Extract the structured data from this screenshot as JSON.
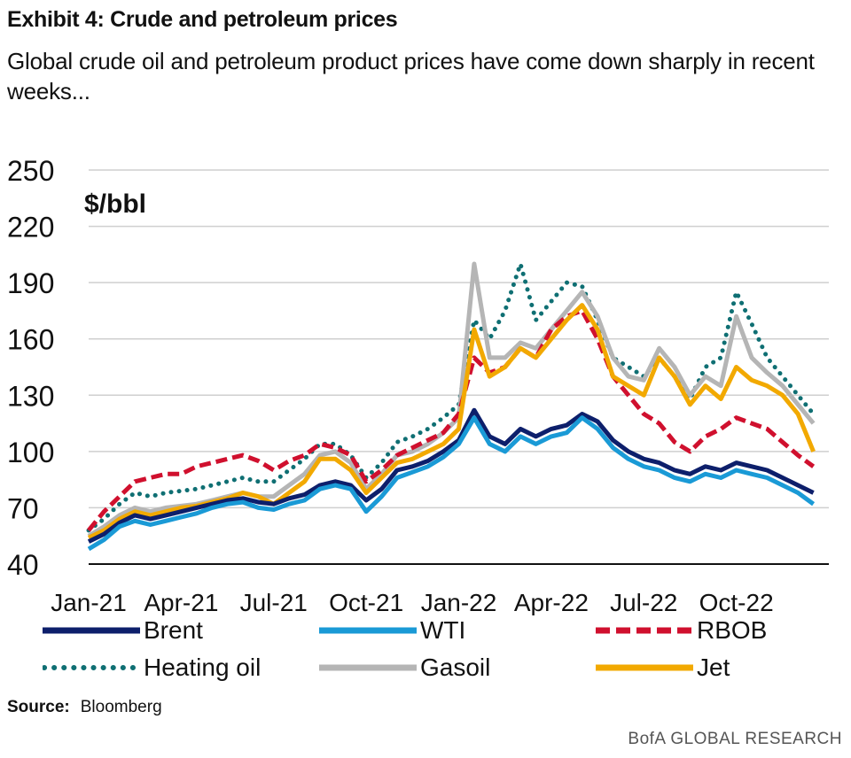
{
  "header": {
    "title": "Exhibit 4: Crude and petroleum prices",
    "subtitle": "Global crude oil and petroleum product prices have come down sharply in recent weeks..."
  },
  "chart_data": {
    "type": "line",
    "ylabel": "$/bbl",
    "ylim": [
      40,
      250
    ],
    "yticks": [
      40,
      70,
      100,
      130,
      160,
      190,
      220,
      250
    ],
    "x_tick_labels": [
      "Jan-21",
      "Apr-21",
      "Jul-21",
      "Oct-21",
      "Jan-22",
      "Apr-22",
      "Jul-22",
      "Oct-22"
    ],
    "x": [
      0,
      0.5,
      1,
      1.5,
      2,
      2.5,
      3,
      3.5,
      4,
      4.5,
      5,
      5.5,
      6,
      6.5,
      7,
      7.5,
      8,
      8.5,
      9,
      9.5,
      10,
      10.5,
      11,
      11.5,
      12,
      12.5,
      13,
      13.5,
      14,
      14.5,
      15,
      15.5,
      16,
      16.5,
      17,
      17.5,
      18,
      18.5,
      19,
      19.5,
      20,
      20.5,
      21,
      21.5,
      22,
      22.5,
      23,
      23.5
    ],
    "series": [
      {
        "name": "Brent",
        "color": "#0d1f6b",
        "style": "solid",
        "values": [
          52,
          56,
          62,
          66,
          64,
          66,
          68,
          70,
          72,
          74,
          75,
          73,
          72,
          75,
          77,
          82,
          84,
          82,
          74,
          80,
          90,
          92,
          95,
          100,
          106,
          122,
          108,
          104,
          112,
          108,
          112,
          114,
          120,
          116,
          106,
          100,
          96,
          94,
          90,
          88,
          92,
          90,
          94,
          92,
          90,
          86,
          82,
          78
        ]
      },
      {
        "name": "WTI",
        "color": "#1a9ad6",
        "style": "solid",
        "values": [
          48,
          53,
          60,
          63,
          61,
          63,
          65,
          67,
          70,
          72,
          73,
          70,
          69,
          72,
          74,
          80,
          82,
          80,
          68,
          76,
          86,
          89,
          92,
          97,
          104,
          118,
          104,
          100,
          108,
          104,
          108,
          110,
          118,
          112,
          102,
          96,
          92,
          90,
          86,
          84,
          88,
          86,
          90,
          88,
          86,
          82,
          78,
          72
        ]
      },
      {
        "name": "RBOB",
        "color": "#d0102e",
        "style": "dashed",
        "values": [
          58,
          68,
          76,
          84,
          86,
          88,
          88,
          92,
          94,
          96,
          98,
          95,
          90,
          95,
          98,
          104,
          102,
          98,
          84,
          90,
          98,
          102,
          106,
          110,
          120,
          150,
          142,
          145,
          155,
          150,
          165,
          172,
          175,
          160,
          140,
          130,
          120,
          115,
          105,
          100,
          108,
          112,
          118,
          115,
          112,
          105,
          98,
          92
        ]
      },
      {
        "name": "Heating oil",
        "color": "#0f6f73",
        "style": "dotted",
        "values": [
          58,
          64,
          72,
          78,
          76,
          78,
          79,
          80,
          82,
          84,
          86,
          84,
          84,
          90,
          96,
          104,
          104,
          98,
          86,
          94,
          105,
          108,
          112,
          118,
          125,
          170,
          160,
          175,
          200,
          170,
          180,
          190,
          188,
          170,
          150,
          145,
          140,
          150,
          140,
          128,
          145,
          150,
          185,
          168,
          150,
          140,
          130,
          120
        ]
      },
      {
        "name": "Gasoil",
        "color": "#b5b5b5",
        "style": "solid",
        "values": [
          55,
          60,
          66,
          70,
          68,
          70,
          71,
          72,
          74,
          76,
          78,
          76,
          76,
          82,
          88,
          98,
          100,
          94,
          80,
          88,
          98,
          100,
          104,
          110,
          118,
          200,
          150,
          150,
          158,
          155,
          165,
          175,
          185,
          172,
          150,
          140,
          138,
          155,
          145,
          130,
          140,
          135,
          172,
          150,
          142,
          135,
          125,
          115
        ]
      },
      {
        "name": "Jet",
        "color": "#f2a900",
        "style": "solid",
        "values": [
          54,
          58,
          64,
          68,
          66,
          68,
          70,
          71,
          73,
          75,
          78,
          76,
          72,
          78,
          84,
          96,
          96,
          90,
          78,
          86,
          94,
          96,
          100,
          104,
          112,
          165,
          140,
          145,
          155,
          150,
          160,
          170,
          178,
          165,
          140,
          135,
          130,
          150,
          140,
          125,
          135,
          128,
          145,
          138,
          135,
          130,
          120,
          100
        ]
      }
    ]
  },
  "legend": {
    "items": [
      "Brent",
      "WTI",
      "RBOB",
      "Heating oil",
      "Gasoil",
      "Jet"
    ]
  },
  "footer": {
    "source_label": "Source:",
    "source_text": "Bloomberg",
    "brand": "BofA GLOBAL RESEARCH"
  }
}
